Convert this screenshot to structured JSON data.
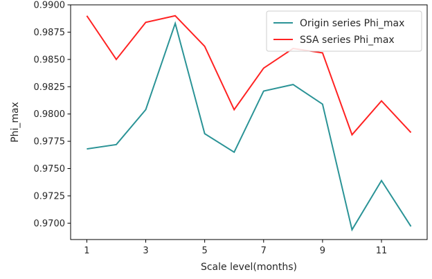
{
  "chart_data": {
    "type": "line",
    "xlabel": "Scale level(months)",
    "ylabel": "Phi_max",
    "x": [
      1,
      2,
      3,
      4,
      5,
      6,
      7,
      8,
      9,
      10,
      11,
      12
    ],
    "xlim": [
      0.45,
      12.55
    ],
    "xticks": [
      1,
      3,
      5,
      7,
      9,
      11
    ],
    "ylim": [
      0.9685,
      0.99
    ],
    "yticks": [
      "0.9700",
      "0.9725",
      "0.9750",
      "0.9775",
      "0.9800",
      "0.9825",
      "0.9850",
      "0.9875",
      "0.9900"
    ],
    "grid": false,
    "legend_position": "top-right",
    "series": [
      {
        "name": "Origin series Phi_max",
        "color": "#2a9396",
        "values": [
          0.9768,
          0.9772,
          0.9804,
          0.9883,
          0.9782,
          0.9765,
          0.9821,
          0.9827,
          0.9809,
          0.9694,
          0.9739,
          0.9697
        ]
      },
      {
        "name": "SSA series Phi_max",
        "color": "#ff2222",
        "values": [
          0.989,
          0.985,
          0.9884,
          0.989,
          0.9862,
          0.9804,
          0.9842,
          0.986,
          0.9856,
          0.9781,
          0.9812,
          0.9783
        ]
      }
    ]
  }
}
